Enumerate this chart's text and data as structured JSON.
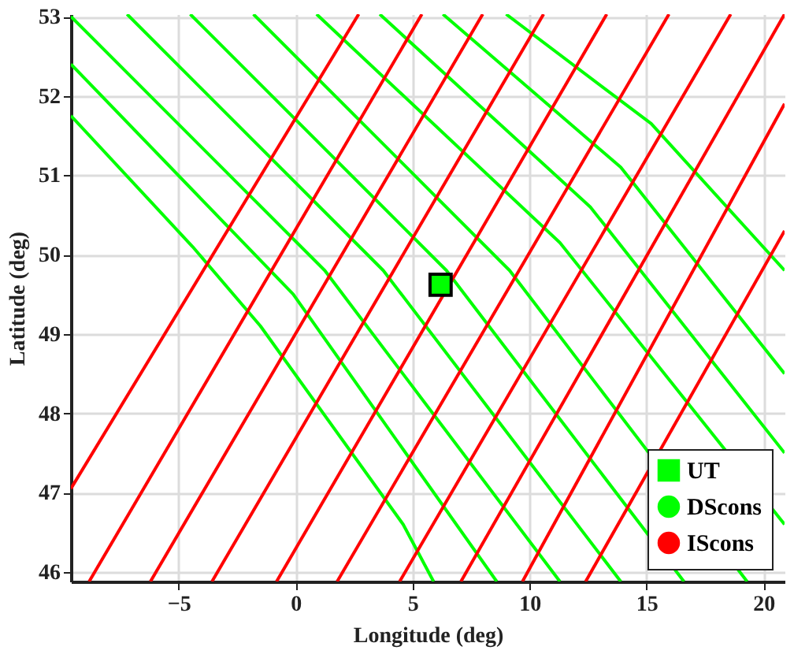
{
  "chart_data": {
    "type": "line",
    "xlabel": "Longitude (deg)",
    "ylabel": "Latitude (deg)",
    "xlim": [
      -9.6,
      20.9
    ],
    "ylim": [
      45.88,
      53.03
    ],
    "xticks": [
      -5,
      0,
      5,
      10,
      15,
      20
    ],
    "yticks": [
      46,
      47,
      48,
      49,
      50,
      51,
      52,
      53
    ],
    "grid": true,
    "legend": "bottom right",
    "line_style": "solid",
    "series": [
      {
        "name": "UT",
        "type": "scatter",
        "marker": "square",
        "color": "#00ff00",
        "x": [
          6.2
        ],
        "values": [
          49.62
        ]
      },
      {
        "name": "DScons",
        "color": "#00ff00",
        "x": [
          -9.6,
          -4.4,
          -1.5,
          4.6,
          5.9
        ],
        "values": [
          51.75,
          50.1,
          49.1,
          46.6,
          45.88
        ]
      },
      {
        "color": "#00ff00",
        "x": [
          -9.6,
          -0.1,
          8.6
        ],
        "values": [
          52.4,
          49.5,
          45.88
        ]
      },
      {
        "color": "#00ff00",
        "x": [
          -9.6,
          1.25,
          11.3
        ],
        "values": [
          53.0,
          49.8,
          45.88
        ]
      },
      {
        "color": "#00ff00",
        "x": [
          -7.2,
          3.75,
          13.9
        ],
        "values": [
          53.03,
          49.8,
          45.88
        ]
      },
      {
        "color": "#00ff00",
        "x": [
          -4.5,
          6.45,
          16.6
        ],
        "values": [
          53.03,
          49.8,
          45.88
        ]
      },
      {
        "color": "#00ff00",
        "x": [
          -1.8,
          9.15,
          19.3
        ],
        "values": [
          53.03,
          49.8,
          45.88
        ]
      },
      {
        "color": "#00ff00",
        "x": [
          0.9,
          11.3,
          20.9
        ],
        "values": [
          53.03,
          50.15,
          46.6
        ]
      },
      {
        "color": "#00ff00",
        "x": [
          3.6,
          12.6,
          20.9
        ],
        "values": [
          53.03,
          50.6,
          47.5
        ]
      },
      {
        "color": "#00ff00",
        "x": [
          6.3,
          13.9,
          20.9
        ],
        "values": [
          53.03,
          51.1,
          48.5
        ]
      },
      {
        "color": "#00ff00",
        "x": [
          9.0,
          15.2,
          20.9
        ],
        "values": [
          53.03,
          51.65,
          49.8
        ]
      },
      {
        "name": "IScons",
        "color": "#ff0000",
        "x": [
          -9.6,
          2.7
        ],
        "values": [
          47.05,
          53.03
        ]
      },
      {
        "color": "#ff0000",
        "x": [
          -8.82,
          5.4
        ],
        "values": [
          45.88,
          53.03
        ]
      },
      {
        "color": "#ff0000",
        "x": [
          -6.2,
          8.0
        ],
        "values": [
          45.88,
          53.03
        ]
      },
      {
        "color": "#ff0000",
        "x": [
          -3.57,
          10.6
        ],
        "values": [
          45.88,
          53.03
        ]
      },
      {
        "color": "#ff0000",
        "x": [
          -0.81,
          13.3
        ],
        "values": [
          45.88,
          53.03
        ]
      },
      {
        "color": "#ff0000",
        "x": [
          1.78,
          15.96
        ],
        "values": [
          45.88,
          53.03
        ]
      },
      {
        "color": "#ff0000",
        "x": [
          4.45,
          18.6
        ],
        "values": [
          45.88,
          53.03
        ]
      },
      {
        "color": "#ff0000",
        "x": [
          7.07,
          20.9
        ],
        "values": [
          45.88,
          53.03
        ]
      },
      {
        "color": "#ff0000",
        "x": [
          9.7,
          20.9
        ],
        "values": [
          45.88,
          51.9
        ]
      },
      {
        "color": "#ff0000",
        "x": [
          12.4,
          20.9
        ],
        "values": [
          45.88,
          50.3
        ]
      }
    ]
  }
}
